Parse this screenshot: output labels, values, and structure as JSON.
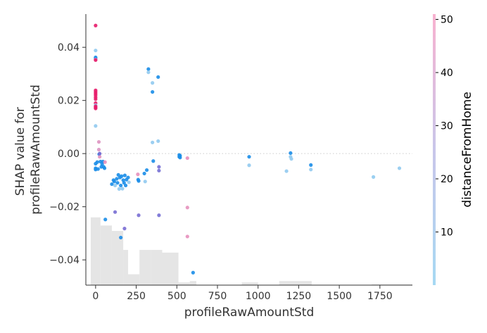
{
  "chart_data": {
    "type": "scatter",
    "title": "",
    "xlabel": "profileRawAmountStd",
    "ylabel_lines": [
      "SHAP value for",
      "profileRawAmountStd"
    ],
    "xlim": [
      -60,
      1950
    ],
    "ylim": [
      -0.0495,
      0.0525
    ],
    "x_ticks": [
      0,
      250,
      500,
      750,
      1000,
      1250,
      1500,
      1750
    ],
    "y_ticks": [
      -0.04,
      -0.02,
      0.0,
      0.02,
      0.04
    ],
    "y_tick_labels": [
      "−0.04",
      "−0.02",
      "0.00",
      "0.02",
      "0.04"
    ],
    "zero_line": 0.0,
    "colorbar": {
      "label": "distanceFromHome",
      "range": [
        0,
        51
      ],
      "ticks": [
        10,
        20,
        30,
        40,
        50
      ],
      "colors": [
        "#a6d9f3",
        "#c9c6ea",
        "#f8b2d0"
      ]
    },
    "histogram": {
      "bins": [
        {
          "x0": -30,
          "x1": 30,
          "density": 0.25
        },
        {
          "x0": 30,
          "x1": 100,
          "density": 0.22
        },
        {
          "x0": 100,
          "x1": 170,
          "density": 0.2
        },
        {
          "x0": 170,
          "x1": 200,
          "density": 0.13
        },
        {
          "x0": 200,
          "x1": 270,
          "density": 0.04
        },
        {
          "x0": 270,
          "x1": 340,
          "density": 0.13
        },
        {
          "x0": 340,
          "x1": 410,
          "density": 0.13
        },
        {
          "x0": 410,
          "x1": 510,
          "density": 0.12
        },
        {
          "x0": 510,
          "x1": 580,
          "density": 0.01
        },
        {
          "x0": 580,
          "x1": 620,
          "density": 0.015
        },
        {
          "x0": 900,
          "x1": 1000,
          "density": 0.01
        },
        {
          "x0": 1130,
          "x1": 1330,
          "density": 0.015
        },
        {
          "x0": 1700,
          "x1": 1950,
          "density": 0.003
        }
      ]
    },
    "points": [
      {
        "x": 0,
        "y": 0.0482,
        "c": 47
      },
      {
        "x": 0,
        "y": 0.0388,
        "c": 3
      },
      {
        "x": 0,
        "y": 0.0362,
        "c": 5
      },
      {
        "x": 0,
        "y": 0.0358,
        "c": 6
      },
      {
        "x": 0,
        "y": 0.0354,
        "c": 44
      },
      {
        "x": 0,
        "y": 0.0352,
        "c": 46
      },
      {
        "x": 0,
        "y": 0.0238,
        "c": 48
      },
      {
        "x": 0,
        "y": 0.0232,
        "c": 49
      },
      {
        "x": 0,
        "y": 0.0226,
        "c": 50
      },
      {
        "x": 0,
        "y": 0.022,
        "c": 48
      },
      {
        "x": 0,
        "y": 0.0212,
        "c": 49
      },
      {
        "x": 0,
        "y": 0.0205,
        "c": 45
      },
      {
        "x": 0,
        "y": 0.019,
        "c": 47
      },
      {
        "x": 0,
        "y": 0.0182,
        "c": 3
      },
      {
        "x": 0,
        "y": 0.0178,
        "c": 48
      },
      {
        "x": 0,
        "y": 0.0174,
        "c": 49
      },
      {
        "x": 0,
        "y": 0.017,
        "c": 46
      },
      {
        "x": 0,
        "y": 0.0104,
        "c": 3
      },
      {
        "x": 0,
        "y": -0.0038,
        "c": 5
      },
      {
        "x": 0,
        "y": -0.0055,
        "c": 6
      },
      {
        "x": 0,
        "y": -0.006,
        "c": 5
      },
      {
        "x": 10,
        "y": -0.0032,
        "c": 7
      },
      {
        "x": 15,
        "y": -0.0058,
        "c": 8
      },
      {
        "x": 20,
        "y": 0.0044,
        "c": 35
      },
      {
        "x": 20,
        "y": 0.0015,
        "c": 33
      },
      {
        "x": 22,
        "y": -0.0002,
        "c": 4
      },
      {
        "x": 25,
        "y": -0.0012,
        "c": 38
      },
      {
        "x": 25,
        "y": 0.0,
        "c": 25
      },
      {
        "x": 30,
        "y": -0.003,
        "c": 8
      },
      {
        "x": 35,
        "y": -0.005,
        "c": 6
      },
      {
        "x": 40,
        "y": -0.004,
        "c": 5
      },
      {
        "x": 45,
        "y": -0.003,
        "c": 4
      },
      {
        "x": 50,
        "y": -0.005,
        "c": 6
      },
      {
        "x": 55,
        "y": -0.0055,
        "c": 5
      },
      {
        "x": 58,
        "y": -0.0032,
        "c": 40
      },
      {
        "x": 60,
        "y": -0.0248,
        "c": 5
      },
      {
        "x": 100,
        "y": -0.0115,
        "c": 4
      },
      {
        "x": 110,
        "y": -0.01,
        "c": 6
      },
      {
        "x": 115,
        "y": -0.0105,
        "c": 7
      },
      {
        "x": 120,
        "y": -0.012,
        "c": 3
      },
      {
        "x": 130,
        "y": -0.0095,
        "c": 5
      },
      {
        "x": 135,
        "y": -0.011,
        "c": 4
      },
      {
        "x": 140,
        "y": -0.008,
        "c": 6
      },
      {
        "x": 145,
        "y": -0.0133,
        "c": 3
      },
      {
        "x": 150,
        "y": -0.009,
        "c": 5
      },
      {
        "x": 155,
        "y": -0.012,
        "c": 4
      },
      {
        "x": 160,
        "y": -0.0085,
        "c": 6
      },
      {
        "x": 165,
        "y": -0.0132,
        "c": 3
      },
      {
        "x": 170,
        "y": -0.01,
        "c": 6
      },
      {
        "x": 175,
        "y": -0.011,
        "c": 5
      },
      {
        "x": 180,
        "y": -0.0082,
        "c": 7
      },
      {
        "x": 185,
        "y": -0.012,
        "c": 4
      },
      {
        "x": 190,
        "y": -0.0098,
        "c": 5
      },
      {
        "x": 200,
        "y": -0.009,
        "c": 4
      },
      {
        "x": 205,
        "y": -0.0108,
        "c": 3
      },
      {
        "x": 120,
        "y": -0.022,
        "c": 18
      },
      {
        "x": 155,
        "y": -0.0316,
        "c": 8
      },
      {
        "x": 178,
        "y": -0.0282,
        "c": 22
      },
      {
        "x": 260,
        "y": -0.0078,
        "c": 42
      },
      {
        "x": 262,
        "y": -0.0098,
        "c": 5
      },
      {
        "x": 265,
        "y": -0.0103,
        "c": 4
      },
      {
        "x": 265,
        "y": -0.0232,
        "c": 20
      },
      {
        "x": 300,
        "y": -0.0075,
        "c": 6
      },
      {
        "x": 305,
        "y": -0.0105,
        "c": 3
      },
      {
        "x": 315,
        "y": -0.0062,
        "c": 4
      },
      {
        "x": 325,
        "y": 0.0318,
        "c": 5
      },
      {
        "x": 325,
        "y": 0.0306,
        "c": 3
      },
      {
        "x": 350,
        "y": 0.0266,
        "c": 3
      },
      {
        "x": 350,
        "y": 0.0232,
        "c": 7
      },
      {
        "x": 350,
        "y": 0.0042,
        "c": 3
      },
      {
        "x": 355,
        "y": -0.0028,
        "c": 6
      },
      {
        "x": 385,
        "y": 0.0288,
        "c": 6
      },
      {
        "x": 385,
        "y": 0.0047,
        "c": 3
      },
      {
        "x": 390,
        "y": -0.005,
        "c": 12
      },
      {
        "x": 390,
        "y": -0.0064,
        "c": 10
      },
      {
        "x": 390,
        "y": -0.0232,
        "c": 12
      },
      {
        "x": 515,
        "y": -0.0005,
        "c": 6
      },
      {
        "x": 515,
        "y": -0.0012,
        "c": 5
      },
      {
        "x": 520,
        "y": -0.0008,
        "c": 4
      },
      {
        "x": 520,
        "y": -0.0015,
        "c": 6
      },
      {
        "x": 565,
        "y": -0.0017,
        "c": 43
      },
      {
        "x": 565,
        "y": -0.0203,
        "c": 40
      },
      {
        "x": 565,
        "y": -0.0312,
        "c": 42
      },
      {
        "x": 600,
        "y": -0.0448,
        "c": 7
      },
      {
        "x": 945,
        "y": -0.0012,
        "c": 4
      },
      {
        "x": 945,
        "y": -0.0044,
        "c": 3
      },
      {
        "x": 1175,
        "y": -0.0066,
        "c": 3
      },
      {
        "x": 1200,
        "y": 0.0002,
        "c": 5
      },
      {
        "x": 1200,
        "y": -0.0012,
        "c": 3
      },
      {
        "x": 1205,
        "y": -0.002,
        "c": 3
      },
      {
        "x": 1325,
        "y": -0.0043,
        "c": 7
      },
      {
        "x": 1325,
        "y": -0.006,
        "c": 3
      },
      {
        "x": 1710,
        "y": -0.0088,
        "c": 2
      },
      {
        "x": 1870,
        "y": -0.0055,
        "c": 3
      }
    ]
  }
}
